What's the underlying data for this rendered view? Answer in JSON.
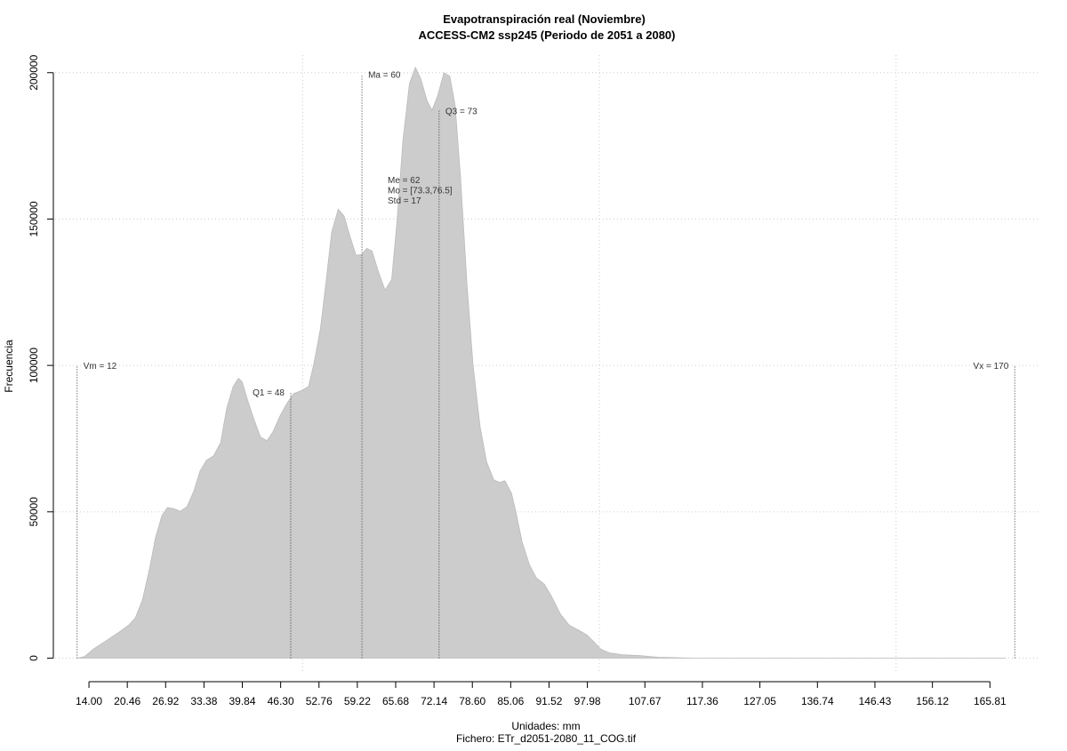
{
  "chart_data": {
    "type": "area",
    "title": "Evapotranspiración real (Noviembre)",
    "subtitle": "ACCESS-CM2 ssp245 (Periodo de 2051 a 2080)",
    "ylabel": "Frecuencia",
    "xlabel": "Unidades: mm",
    "footer": "Fichero: ETr_d2051-2080_11_COG.tif",
    "color": "#cccccc",
    "x": [
      12.2,
      13.3,
      14.7,
      17,
      19.2,
      20.7,
      21.8,
      23,
      24.2,
      25.2,
      26.3,
      27.2,
      28.2,
      29.4,
      30.5,
      31.7,
      32.7,
      33.8,
      35,
      36.2,
      37.2,
      38.3,
      39.2,
      39.8,
      40.7,
      41.7,
      42.9,
      44,
      45,
      46.2,
      47.3,
      48.5,
      49.7,
      51,
      51.9,
      53,
      54,
      54.9,
      56,
      57,
      57.9,
      59,
      60,
      60.8,
      61.7,
      62.7,
      63.9,
      65,
      65.9,
      66.9,
      68,
      69,
      69.9,
      71,
      71.8,
      72.7,
      73.8,
      74.8,
      75.7,
      76.6,
      77.7,
      78.7,
      79.9,
      81,
      82.2,
      83.2,
      84.1,
      85.2,
      85.9,
      87,
      88.2,
      89.4,
      90.7,
      91.9,
      93.4,
      94.9,
      96.4,
      97.9,
      99.1,
      100.3,
      101.7,
      103.9,
      106.9,
      109.9,
      115.9,
      168.4
    ],
    "values": [
      0,
      600,
      3000,
      6100,
      9100,
      11300,
      13700,
      19800,
      30400,
      41100,
      48700,
      51400,
      51100,
      50200,
      51700,
      57200,
      63900,
      67600,
      69100,
      73700,
      85200,
      92800,
      95600,
      94400,
      88300,
      82200,
      75500,
      74300,
      77300,
      82800,
      86800,
      90400,
      91300,
      92800,
      100500,
      112600,
      129400,
      145500,
      153400,
      151000,
      144600,
      137600,
      137900,
      140000,
      139100,
      132400,
      125700,
      129400,
      149200,
      176600,
      196300,
      201800,
      197900,
      190200,
      187200,
      191800,
      200000,
      198800,
      188700,
      164400,
      127800,
      100500,
      79100,
      67000,
      60900,
      60000,
      60600,
      56300,
      50200,
      39600,
      32000,
      27400,
      25300,
      21300,
      15200,
      11300,
      9700,
      7900,
      5500,
      3000,
      1800,
      1200,
      900,
      300,
      0,
      0
    ],
    "xlim": [
      8.3,
      174.3
    ],
    "ylim": [
      -5000,
      206000
    ],
    "xticks": [
      {
        "value": 14,
        "label": "14.00"
      },
      20.46,
      26.92,
      33.38,
      39.84,
      {
        "value": 46.3,
        "label": "46.30"
      },
      52.76,
      59.22,
      65.68,
      72.14,
      {
        "value": 78.6,
        "label": "78.60"
      },
      85.06,
      91.52,
      97.98,
      107.67,
      117.36,
      127.05,
      136.74,
      146.43,
      156.12,
      165.81
    ],
    "yticks": [
      0,
      50000,
      100000,
      150000,
      200000
    ],
    "xgrid": [
      50,
      100,
      150
    ],
    "grid": true,
    "markers": [
      {
        "label": "Vm = 12",
        "x": 12,
        "y": 100000
      },
      {
        "label": "Q1 = 48",
        "x": 48,
        "y": 91000
      },
      {
        "label": "Ma = 60",
        "x": 60,
        "y": 199400
      },
      {
        "label": "Q3 = 73",
        "x": 73,
        "y": 187000
      },
      {
        "label": "Vx = 170",
        "x": 170,
        "y": 100000
      }
    ],
    "stats": [
      "Me = 62",
      "Mo = [73.3,76.5]",
      "Std = 17"
    ]
  }
}
